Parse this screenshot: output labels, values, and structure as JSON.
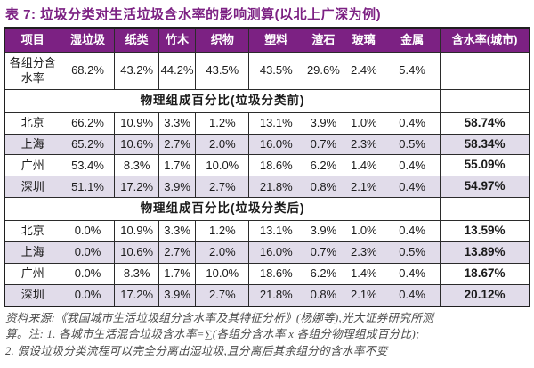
{
  "title": "表 7: 垃圾分类对生活垃圾含水率的影响测算(以北上广深为例)",
  "colors": {
    "header_bg": "#7c2183",
    "title_text": "#7c2183",
    "alt_row_bg": "#e1dcea",
    "border": "#2b2b2b",
    "footnote_text": "#4a4a4a"
  },
  "chart_data": {
    "type": "table",
    "title": "垃圾分类对生活垃圾含水率的影响测算(以北上广深为例)",
    "headers": [
      "项目",
      "湿垃圾",
      "纸类",
      "竹木",
      "织物",
      "塑料",
      "渣石",
      "玻璃",
      "金属",
      "含水率(城市)"
    ],
    "moisture_row": {
      "label": "各组分含水率",
      "values": [
        "68.2%",
        "43.2%",
        "44.2%",
        "43.5%",
        "43.5%",
        "29.6%",
        "2.4%",
        "5.4%"
      ],
      "total": ""
    },
    "sections": [
      {
        "title": "物理组成百分比(垃圾分类前)",
        "rows": [
          {
            "city": "北京",
            "values": [
              "66.2%",
              "10.9%",
              "3.3%",
              "1.2%",
              "13.1%",
              "3.9%",
              "1.0%",
              "0.4%"
            ],
            "total": "58.74%"
          },
          {
            "city": "上海",
            "values": [
              "65.2%",
              "10.6%",
              "2.7%",
              "2.0%",
              "16.0%",
              "0.7%",
              "2.3%",
              "0.5%"
            ],
            "total": "58.34%"
          },
          {
            "city": "广州",
            "values": [
              "53.4%",
              "8.3%",
              "1.7%",
              "10.0%",
              "18.6%",
              "6.2%",
              "1.4%",
              "0.4%"
            ],
            "total": "55.09%"
          },
          {
            "city": "深圳",
            "values": [
              "51.1%",
              "17.2%",
              "3.9%",
              "2.7%",
              "21.8%",
              "0.8%",
              "2.1%",
              "0.4%"
            ],
            "total": "54.97%"
          }
        ]
      },
      {
        "title": "物理组成百分比(垃圾分类后)",
        "rows": [
          {
            "city": "北京",
            "values": [
              "0.0%",
              "10.9%",
              "3.3%",
              "1.2%",
              "13.1%",
              "3.9%",
              "1.0%",
              "0.4%"
            ],
            "total": "13.59%"
          },
          {
            "city": "上海",
            "values": [
              "0.0%",
              "10.6%",
              "2.7%",
              "2.0%",
              "16.0%",
              "0.7%",
              "2.3%",
              "0.5%"
            ],
            "total": "13.89%"
          },
          {
            "city": "广州",
            "values": [
              "0.0%",
              "8.3%",
              "1.7%",
              "10.0%",
              "18.6%",
              "6.2%",
              "1.4%",
              "0.4%"
            ],
            "total": "18.67%"
          },
          {
            "city": "深圳",
            "values": [
              "0.0%",
              "17.2%",
              "3.9%",
              "2.7%",
              "21.8%",
              "0.8%",
              "2.1%",
              "0.4%"
            ],
            "total": "20.12%"
          }
        ]
      }
    ]
  },
  "footnote": {
    "line1": "资料来源:《我国城市生活垃圾组分含水率及其特征分析》(杨娜等),光大证券研究所测",
    "line2": "算。注: 1. 各城市生活混合垃圾含水率=∑(各组分含水率 x 各组分物理组成百分比);",
    "line3": "2. 假设垃圾分类流程可以完全分离出湿垃圾,且分离后其余组分的含水率不变"
  }
}
